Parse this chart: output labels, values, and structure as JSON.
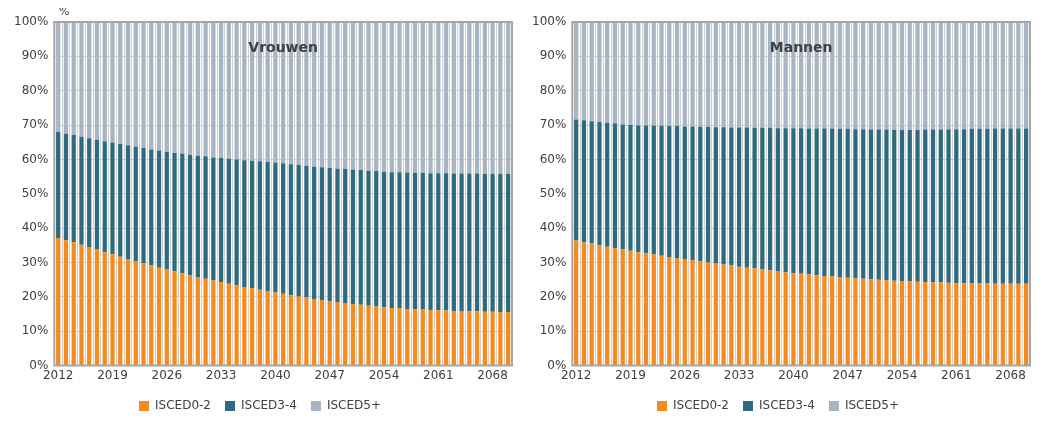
{
  "chart_data": [
    {
      "type": "bar",
      "title": "Vrouwen",
      "ylabel": "%",
      "stacked": true,
      "grid": true,
      "legend": "bottom",
      "categories": [
        "2012",
        null,
        null,
        null,
        null,
        null,
        null,
        "2019",
        null,
        null,
        null,
        null,
        null,
        null,
        "2026",
        null,
        null,
        null,
        null,
        null,
        null,
        "2033",
        null,
        null,
        null,
        null,
        null,
        null,
        "2040",
        null,
        null,
        null,
        null,
        null,
        null,
        "2047",
        null,
        null,
        null,
        null,
        null,
        null,
        "2054",
        null,
        null,
        null,
        null,
        null,
        null,
        "2061",
        null,
        null,
        null,
        null,
        null,
        null,
        "2068",
        null,
        null
      ],
      "ylim": [
        0,
        100
      ],
      "yticks": [
        {
          "value": 0,
          "label": "0%"
        },
        {
          "value": 10,
          "label": "10%"
        },
        {
          "value": 20,
          "label": "20%"
        },
        {
          "value": 30,
          "label": "30%"
        },
        {
          "value": 40,
          "label": "40%"
        },
        {
          "value": 50,
          "label": "50%"
        },
        {
          "value": 60,
          "label": "60%"
        },
        {
          "value": 70,
          "label": "70%"
        },
        {
          "value": 80,
          "label": "80%"
        },
        {
          "value": 90,
          "label": "90%"
        },
        {
          "value": 100,
          "label": "100%"
        }
      ],
      "series": [
        {
          "name": "ISCED0-2",
          "color": "#f58a1f",
          "values": [
            37.1,
            36.5,
            35.9,
            35.2,
            34.5,
            33.8,
            33.0,
            32.4,
            31.7,
            31.0,
            30.3,
            29.7,
            29.1,
            28.5,
            28.0,
            27.4,
            26.9,
            26.3,
            25.8,
            25.3,
            24.8,
            24.3,
            23.8,
            23.4,
            22.9,
            22.5,
            22.1,
            21.7,
            21.3,
            20.9,
            20.5,
            20.1,
            19.8,
            19.4,
            19.1,
            18.8,
            18.5,
            18.2,
            17.9,
            17.7,
            17.4,
            17.2,
            17.0,
            16.8,
            16.7,
            16.5,
            16.4,
            16.3,
            16.2,
            16.1,
            16.0,
            15.9,
            15.9,
            15.8,
            15.8,
            15.7,
            15.7,
            15.6,
            15.6
          ]
        },
        {
          "name": "ISCED3-4",
          "color": "#2e6a80",
          "values": [
            30.9,
            31.0,
            31.2,
            31.4,
            31.7,
            31.9,
            32.3,
            32.5,
            32.8,
            33.1,
            33.4,
            33.6,
            33.8,
            34.1,
            34.2,
            34.5,
            34.8,
            35.1,
            35.3,
            35.6,
            35.8,
            36.1,
            36.4,
            36.6,
            36.9,
            37.1,
            37.4,
            37.6,
            37.8,
            38.0,
            38.1,
            38.3,
            38.4,
            38.5,
            38.6,
            38.7,
            38.8,
            39.0,
            39.1,
            39.2,
            39.3,
            39.4,
            39.4,
            39.5,
            39.6,
            39.7,
            39.7,
            39.8,
            39.8,
            39.9,
            40.0,
            40.0,
            40.0,
            40.1,
            40.1,
            40.1,
            40.1,
            40.2,
            40.2
          ]
        },
        {
          "name": "ISCED5+",
          "color": "#a8b5c4",
          "values": [
            32.0,
            32.5,
            32.9,
            33.4,
            33.8,
            34.3,
            34.7,
            35.1,
            35.5,
            35.9,
            36.3,
            36.7,
            37.1,
            37.4,
            37.8,
            38.1,
            38.3,
            38.6,
            38.9,
            39.1,
            39.4,
            39.6,
            39.8,
            40.0,
            40.2,
            40.4,
            40.5,
            40.7,
            40.9,
            41.1,
            41.4,
            41.6,
            41.8,
            42.1,
            42.3,
            42.5,
            42.7,
            42.8,
            43.0,
            43.1,
            43.3,
            43.4,
            43.6,
            43.7,
            43.7,
            43.8,
            43.9,
            43.9,
            44.0,
            44.0,
            44.0,
            44.1,
            44.1,
            44.1,
            44.1,
            44.2,
            44.2,
            44.2,
            44.2
          ]
        }
      ]
    },
    {
      "type": "bar",
      "title": "Mannen",
      "stacked": true,
      "grid": true,
      "legend": "bottom",
      "categories": [
        "2012",
        null,
        null,
        null,
        null,
        null,
        null,
        "2019",
        null,
        null,
        null,
        null,
        null,
        null,
        "2026",
        null,
        null,
        null,
        null,
        null,
        null,
        "2033",
        null,
        null,
        null,
        null,
        null,
        null,
        "2040",
        null,
        null,
        null,
        null,
        null,
        null,
        "2047",
        null,
        null,
        null,
        null,
        null,
        null,
        "2054",
        null,
        null,
        null,
        null,
        null,
        null,
        "2061",
        null,
        null,
        null,
        null,
        null,
        null,
        "2068",
        null,
        null
      ],
      "ylim": [
        0,
        100
      ],
      "yticks": [
        {
          "value": 0,
          "label": "0%"
        },
        {
          "value": 10,
          "label": "10%"
        },
        {
          "value": 20,
          "label": "20%"
        },
        {
          "value": 30,
          "label": "30%"
        },
        {
          "value": 40,
          "label": "40%"
        },
        {
          "value": 50,
          "label": "50%"
        },
        {
          "value": 60,
          "label": "60%"
        },
        {
          "value": 70,
          "label": "70%"
        },
        {
          "value": 80,
          "label": "80%"
        },
        {
          "value": 90,
          "label": "90%"
        },
        {
          "value": 100,
          "label": "100%"
        }
      ],
      "series": [
        {
          "name": "ISCED0-2",
          "color": "#f58a1f",
          "values": [
            36.4,
            35.9,
            35.5,
            35.0,
            34.6,
            34.2,
            33.8,
            33.4,
            33.0,
            32.7,
            32.3,
            32.0,
            31.6,
            31.3,
            31.0,
            30.7,
            30.3,
            30.0,
            29.7,
            29.4,
            29.1,
            28.8,
            28.5,
            28.3,
            28.0,
            27.7,
            27.5,
            27.2,
            26.9,
            26.7,
            26.5,
            26.3,
            26.1,
            26.0,
            25.8,
            25.6,
            25.4,
            25.3,
            25.1,
            25.0,
            24.9,
            24.7,
            24.6,
            24.5,
            24.4,
            24.3,
            24.2,
            24.2,
            24.1,
            24.0,
            24.0,
            23.9,
            23.9,
            23.9,
            23.8,
            23.8,
            23.8,
            23.8,
            23.8
          ]
        },
        {
          "name": "ISCED3-4",
          "color": "#2e6a80",
          "values": [
            35.2,
            35.5,
            35.6,
            35.9,
            36.1,
            36.3,
            36.4,
            36.6,
            36.9,
            37.2,
            37.5,
            37.8,
            38.1,
            38.4,
            38.6,
            38.9,
            39.2,
            39.5,
            39.7,
            40.0,
            40.2,
            40.5,
            40.8,
            40.9,
            41.2,
            41.5,
            41.6,
            41.9,
            42.2,
            42.4,
            42.5,
            42.7,
            42.9,
            43.0,
            43.1,
            43.3,
            43.4,
            43.5,
            43.6,
            43.7,
            43.8,
            43.9,
            44.0,
            44.1,
            44.2,
            44.4,
            44.5,
            44.5,
            44.7,
            44.8,
            44.8,
            45.0,
            45.0,
            45.0,
            45.2,
            45.2,
            45.2,
            45.2,
            45.2
          ]
        },
        {
          "name": "ISCED5+",
          "color": "#a8b5c4",
          "values": [
            28.4,
            28.6,
            28.9,
            29.1,
            29.3,
            29.5,
            29.8,
            30.0,
            30.1,
            30.1,
            30.2,
            30.2,
            30.3,
            30.3,
            30.4,
            30.4,
            30.5,
            30.5,
            30.6,
            30.6,
            30.7,
            30.7,
            30.7,
            30.8,
            30.8,
            30.8,
            30.9,
            30.9,
            30.9,
            30.9,
            31.0,
            31.0,
            31.0,
            31.0,
            31.1,
            31.1,
            31.2,
            31.2,
            31.3,
            31.3,
            31.3,
            31.4,
            31.4,
            31.4,
            31.4,
            31.3,
            31.3,
            31.3,
            31.2,
            31.2,
            31.2,
            31.1,
            31.1,
            31.1,
            31.0,
            31.0,
            31.0,
            31.0,
            31.0
          ]
        }
      ]
    }
  ]
}
